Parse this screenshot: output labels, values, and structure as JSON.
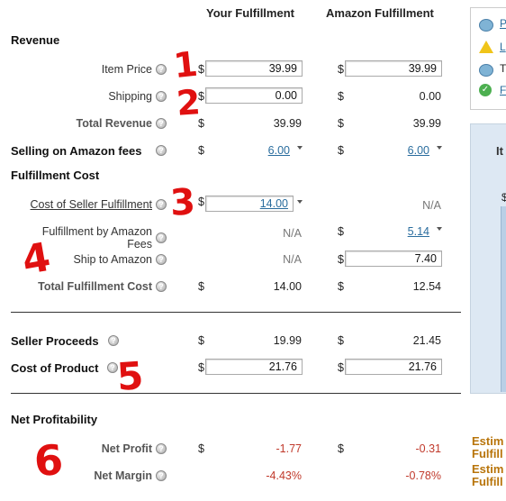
{
  "header": {
    "your_fulfillment": "Your Fulfillment",
    "amazon_fulfillment": "Amazon Fulfillment"
  },
  "sections": {
    "revenue": "Revenue",
    "fulfillment_cost": "Fulfillment Cost",
    "net_profitability": "Net Profitability"
  },
  "rows": {
    "item_price": {
      "label": "Item Price",
      "your": "39.99",
      "amazon": "39.99"
    },
    "shipping": {
      "label": "Shipping",
      "your": "0.00",
      "amazon": "0.00"
    },
    "total_revenue": {
      "label": "Total Revenue",
      "your": "39.99",
      "amazon": "39.99"
    },
    "selling_fees": {
      "label": "Selling on Amazon fees",
      "your": "6.00",
      "amazon": "6.00"
    },
    "cost_seller_fulfillment": {
      "label": "Cost of Seller Fulfillment",
      "your": "14.00",
      "amazon": "N/A"
    },
    "fba": {
      "label_line1": "Fulfillment by Amazon",
      "label_line2": "Fees",
      "your": "N/A",
      "amazon": "5.14"
    },
    "ship_to_amazon": {
      "label": "Ship to Amazon",
      "your": "N/A",
      "amazon": "7.40"
    },
    "total_fulfillment_cost": {
      "label": "Total Fulfillment Cost",
      "your": "14.00",
      "amazon": "12.54"
    },
    "seller_proceeds": {
      "label": "Seller Proceeds",
      "your": "19.99",
      "amazon": "21.45"
    },
    "cost_of_product": {
      "label": "Cost of Product",
      "your": "21.76",
      "amazon": "21.76"
    },
    "net_profit": {
      "label": "Net Profit",
      "your": "-1.77",
      "amazon": "-0.31"
    },
    "net_margin": {
      "label": "Net Margin",
      "your": "-4.43%",
      "amazon": "-0.78%"
    }
  },
  "currency_symbol": "$",
  "help_glyph": "?",
  "annotations": [
    "1",
    "2",
    "3",
    "4",
    "5",
    "6"
  ],
  "right_panel": {
    "links": [
      "P",
      "L",
      "T",
      "F"
    ],
    "chart_label": "It",
    "chart_dollar": "$",
    "estimate_1_line1": "Estim",
    "estimate_1_line2": "Fulfill",
    "estimate_2_line1": "Estim",
    "estimate_2_line2": "Fulfill"
  },
  "colors": {
    "link": "#2a6d9e",
    "negative": "#c0392b",
    "annotation": "#e01010",
    "estimate": "#b8740a",
    "chart_panel_bg": "#dde8f3",
    "chart_bar": "#b9cfe6"
  },
  "icons": [
    "help-icon",
    "info-bubble-icon",
    "warning-icon",
    "checkmark-icon",
    "dropdown-caret-icon"
  ]
}
